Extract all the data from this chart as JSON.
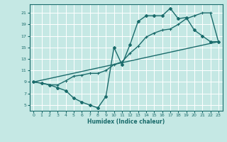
{
  "xlabel": "Humidex (Indice chaleur)",
  "bg_color": "#c5e8e4",
  "grid_color": "#ffffff",
  "line_color": "#1a6b6b",
  "xlim": [
    -0.5,
    23.5
  ],
  "ylim": [
    4.0,
    22.5
  ],
  "xticks": [
    0,
    1,
    2,
    3,
    4,
    5,
    6,
    7,
    8,
    9,
    10,
    11,
    12,
    13,
    14,
    15,
    16,
    17,
    18,
    19,
    20,
    21,
    22,
    23
  ],
  "yticks": [
    5,
    7,
    9,
    11,
    13,
    15,
    17,
    19,
    21
  ],
  "line1_x": [
    0,
    1,
    2,
    3,
    4,
    5,
    6,
    7,
    8,
    9,
    10,
    11,
    12,
    13,
    14,
    15,
    16,
    17,
    18,
    19,
    20,
    21,
    22,
    23
  ],
  "line1_y": [
    9,
    8.8,
    8.5,
    8.0,
    7.5,
    6.2,
    5.5,
    5.0,
    4.5,
    6.5,
    15.0,
    12.0,
    15.5,
    19.5,
    20.5,
    20.5,
    20.5,
    21.8,
    20.0,
    20.2,
    18.0,
    17.0,
    16.0,
    16.0
  ],
  "line2_x": [
    0,
    1,
    2,
    3,
    4,
    5,
    6,
    7,
    8,
    9,
    10,
    11,
    12,
    13,
    14,
    15,
    16,
    17,
    18,
    19,
    20,
    21,
    22,
    23
  ],
  "line2_y": [
    9,
    8.8,
    8.5,
    8.5,
    9.2,
    10.0,
    10.2,
    10.5,
    10.5,
    11.0,
    12.0,
    12.5,
    14.0,
    15.2,
    16.8,
    17.5,
    18.0,
    18.2,
    19.0,
    20.0,
    20.5,
    21.0,
    21.0,
    16.0
  ],
  "line3_x": [
    0,
    23
  ],
  "line3_y": [
    9,
    16
  ]
}
